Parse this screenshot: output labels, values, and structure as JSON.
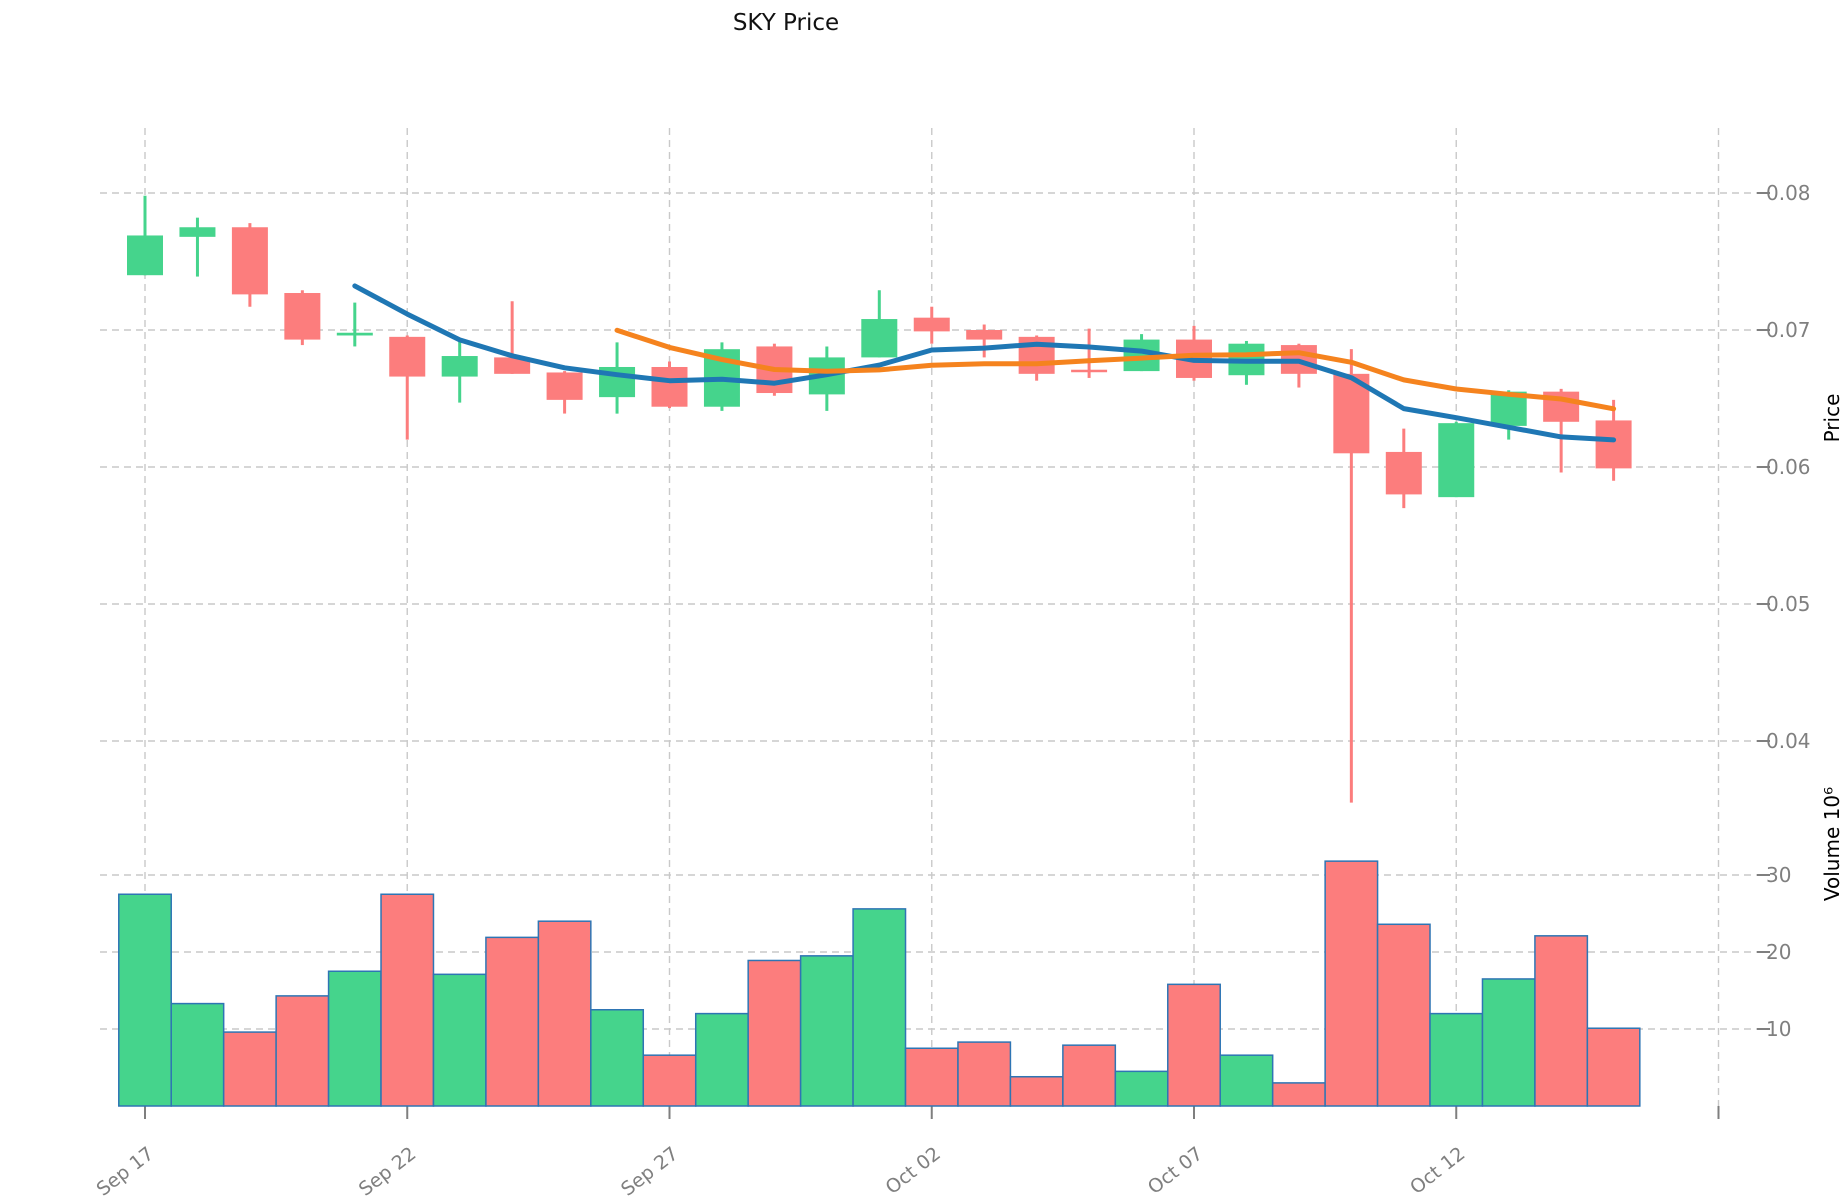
{
  "title": "SKY Price",
  "axes": {
    "price_label": "Price",
    "volume_label": "Volume  10⁶",
    "price_ticks": [
      0.08,
      0.07,
      0.06,
      0.05,
      0.04
    ],
    "price_tick_labels": [
      "0.08",
      "0.07",
      "0.06",
      "0.05",
      "0.04"
    ],
    "volume_ticks": [
      30,
      20,
      10
    ],
    "volume_tick_labels": [
      "30",
      "20",
      "10"
    ],
    "x_tick_labels": [
      "Sep 17",
      "Sep 22",
      "Sep 27",
      "Oct 02",
      "Oct 07",
      "Oct 12"
    ],
    "x_tick_day_indices": [
      0,
      5,
      10,
      15,
      20,
      25
    ],
    "unlabeled_gridline_day_index": 30
  },
  "colors": {
    "up": "#45d48c",
    "down": "#fc7d7d",
    "volume_edge": "#2e75b4",
    "sma5": "#1f77b4",
    "sma10": "#f5831e",
    "grid": "#c9c9c9",
    "tick_text": "#7f7f7f",
    "title_text": "#111111"
  },
  "chart_data": {
    "type": "candlestick+volume",
    "title": "SKY Price",
    "price_ylabel": "Price",
    "volume_ylabel": "Volume  10⁶",
    "volume_unit_multiplier": 1000000,
    "grid": "dashed, both axes",
    "legend_position": "none",
    "price_axis_range": [
      0.0346,
      0.0868
    ],
    "volume_axis_range": [
      0,
      33.5
    ],
    "overlays": [
      {
        "name": "SMA5",
        "period": 5,
        "source": "close",
        "color": "#1f77b4"
      },
      {
        "name": "SMA10",
        "period": 10,
        "source": "close",
        "color": "#f5831e"
      }
    ],
    "candles": [
      {
        "date": "Sep 17",
        "open": 0.074,
        "high": 0.0798,
        "low": 0.074,
        "close": 0.0769,
        "volume": 27.5
      },
      {
        "date": "Sep 18",
        "open": 0.0768,
        "high": 0.0782,
        "low": 0.0739,
        "close": 0.0775,
        "volume": 13.3
      },
      {
        "date": "Sep 19",
        "open": 0.0775,
        "high": 0.0778,
        "low": 0.0717,
        "close": 0.0726,
        "volume": 9.6
      },
      {
        "date": "Sep 20",
        "open": 0.0727,
        "high": 0.0729,
        "low": 0.0689,
        "close": 0.0693,
        "volume": 14.3
      },
      {
        "date": "Sep 21",
        "open": 0.0696,
        "high": 0.072,
        "low": 0.0688,
        "close": 0.0698,
        "volume": 17.5
      },
      {
        "date": "Sep 22",
        "open": 0.0695,
        "high": 0.0696,
        "low": 0.062,
        "close": 0.0666,
        "volume": 27.5
      },
      {
        "date": "Sep 23",
        "open": 0.0666,
        "high": 0.0692,
        "low": 0.0647,
        "close": 0.0681,
        "volume": 17.1
      },
      {
        "date": "Sep 24",
        "open": 0.068,
        "high": 0.0721,
        "low": 0.0668,
        "close": 0.0668,
        "volume": 21.9
      },
      {
        "date": "Sep 25",
        "open": 0.0669,
        "high": 0.067,
        "low": 0.0639,
        "close": 0.0649,
        "volume": 24.0
      },
      {
        "date": "Sep 26",
        "open": 0.0651,
        "high": 0.0691,
        "low": 0.0639,
        "close": 0.0673,
        "volume": 12.5
      },
      {
        "date": "Sep 27",
        "open": 0.0673,
        "high": 0.0677,
        "low": 0.0643,
        "close": 0.0644,
        "volume": 6.6
      },
      {
        "date": "Sep 28",
        "open": 0.0644,
        "high": 0.0691,
        "low": 0.0641,
        "close": 0.0686,
        "volume": 12.0
      },
      {
        "date": "Sep 29",
        "open": 0.0688,
        "high": 0.069,
        "low": 0.0652,
        "close": 0.0654,
        "volume": 18.9
      },
      {
        "date": "Sep 30",
        "open": 0.0653,
        "high": 0.0688,
        "low": 0.0641,
        "close": 0.068,
        "volume": 19.5
      },
      {
        "date": "Oct 01",
        "open": 0.068,
        "high": 0.0729,
        "low": 0.068,
        "close": 0.0708,
        "volume": 25.6
      },
      {
        "date": "Oct 02",
        "open": 0.0709,
        "high": 0.0717,
        "low": 0.069,
        "close": 0.0699,
        "volume": 7.5
      },
      {
        "date": "Oct 03",
        "open": 0.07,
        "high": 0.0704,
        "low": 0.068,
        "close": 0.0693,
        "volume": 8.3
      },
      {
        "date": "Oct 04",
        "open": 0.0695,
        "high": 0.0696,
        "low": 0.0663,
        "close": 0.0668,
        "volume": 3.8
      },
      {
        "date": "Oct 05",
        "open": 0.0671,
        "high": 0.0701,
        "low": 0.0665,
        "close": 0.067,
        "volume": 7.9
      },
      {
        "date": "Oct 06",
        "open": 0.067,
        "high": 0.0697,
        "low": 0.067,
        "close": 0.0693,
        "volume": 4.5
      },
      {
        "date": "Oct 07",
        "open": 0.0693,
        "high": 0.0703,
        "low": 0.0663,
        "close": 0.0665,
        "volume": 15.8
      },
      {
        "date": "Oct 08",
        "open": 0.0667,
        "high": 0.0692,
        "low": 0.066,
        "close": 0.069,
        "volume": 6.6
      },
      {
        "date": "Oct 09",
        "open": 0.0689,
        "high": 0.069,
        "low": 0.0658,
        "close": 0.0668,
        "volume": 3.0
      },
      {
        "date": "Oct 10",
        "open": 0.0668,
        "high": 0.0686,
        "low": 0.0355,
        "close": 0.061,
        "volume": 31.8
      },
      {
        "date": "Oct 11",
        "open": 0.0611,
        "high": 0.0628,
        "low": 0.057,
        "close": 0.058,
        "volume": 23.6
      },
      {
        "date": "Oct 12",
        "open": 0.0578,
        "high": 0.0633,
        "low": 0.0578,
        "close": 0.0632,
        "volume": 12.0
      },
      {
        "date": "Oct 13",
        "open": 0.063,
        "high": 0.0656,
        "low": 0.062,
        "close": 0.0655,
        "volume": 16.5
      },
      {
        "date": "Oct 14",
        "open": 0.0655,
        "high": 0.0657,
        "low": 0.0596,
        "close": 0.0633,
        "volume": 22.1
      },
      {
        "date": "Oct 15",
        "open": 0.0634,
        "high": 0.0649,
        "low": 0.059,
        "close": 0.0599,
        "volume": 10.1
      }
    ]
  }
}
